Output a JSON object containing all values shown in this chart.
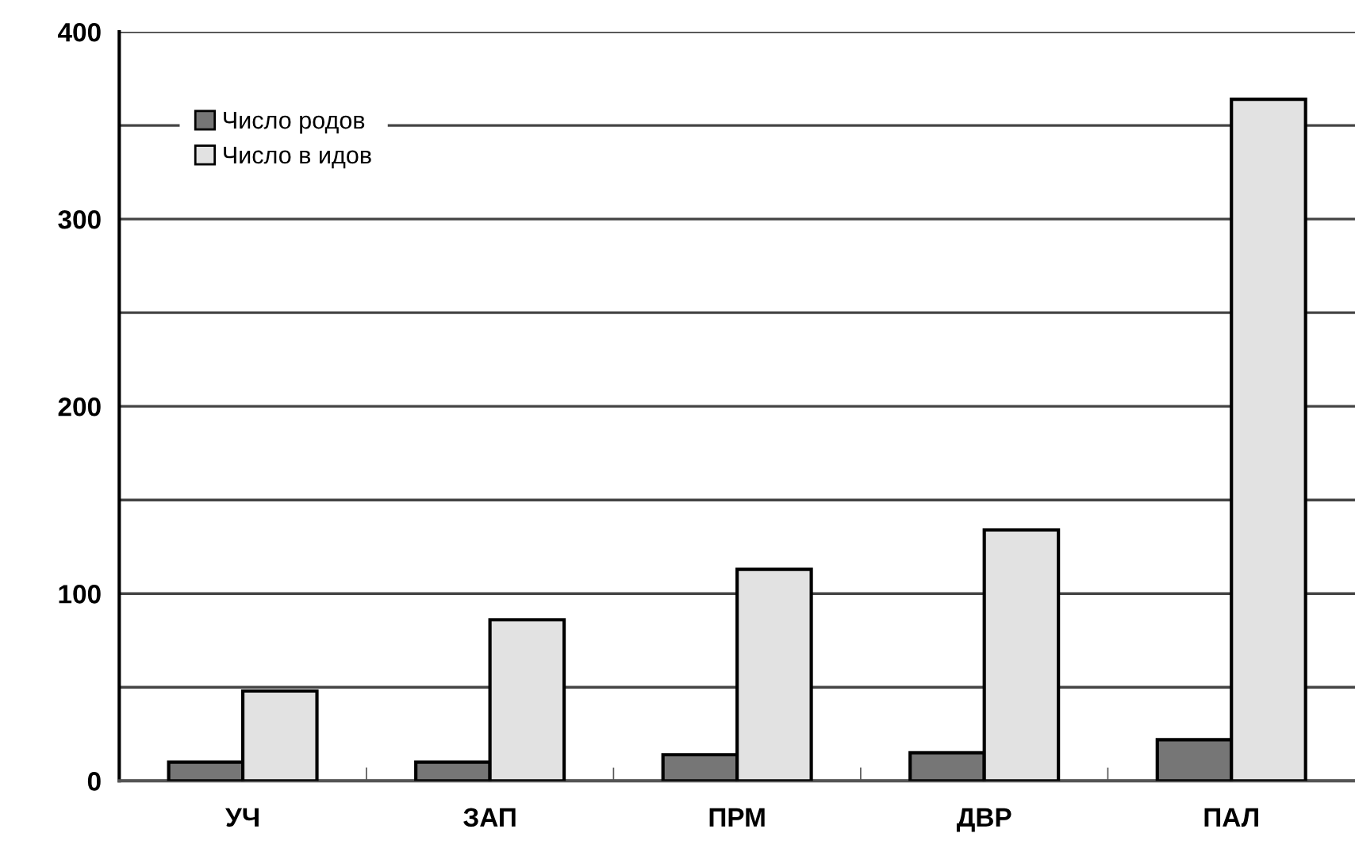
{
  "chart_data": {
    "type": "bar",
    "categories": [
      "УЧ",
      "ЗАП",
      "ПРМ",
      "ДВР",
      "ПАЛ"
    ],
    "series": [
      {
        "name": "Число родов",
        "color": "#767676",
        "values": [
          10,
          10,
          14,
          15,
          22
        ]
      },
      {
        "name": "Число в идов",
        "color": "#e2e2e2",
        "values": [
          48,
          86,
          113,
          134,
          364
        ]
      }
    ],
    "ylim": [
      0,
      400
    ],
    "yticks": [
      0,
      {
        "value": 50,
        "label": null
      },
      100,
      {
        "value": 150,
        "label": null
      },
      200,
      {
        "value": 250,
        "label": null
      },
      300,
      {
        "value": 350,
        "label": null
      },
      400
    ],
    "grid": "y",
    "legend": "top left"
  }
}
